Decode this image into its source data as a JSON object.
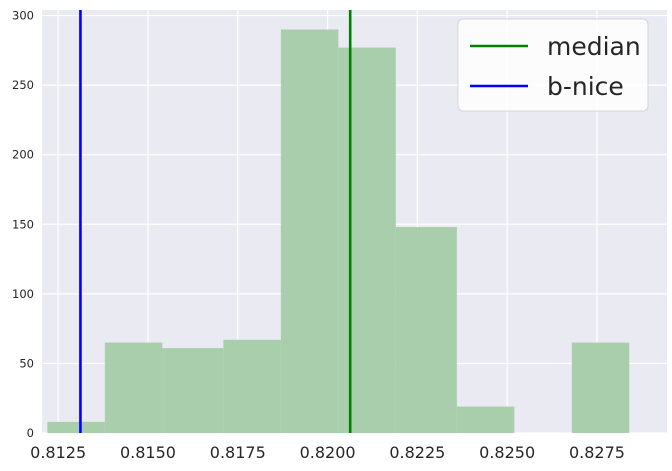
{
  "chart_data": {
    "type": "histogram",
    "title": "",
    "xlabel": "",
    "ylabel": "",
    "xlim": [
      0.81205,
      0.82945
    ],
    "ylim": [
      0,
      304
    ],
    "xticks": [
      0.8125,
      0.815,
      0.8175,
      0.82,
      0.8225,
      0.825,
      0.8275
    ],
    "xtick_labels": [
      "0.8125",
      "0.8150",
      "0.8175",
      "0.8200",
      "0.8225",
      "0.8250",
      "0.8275"
    ],
    "yticks": [
      0,
      50,
      100,
      150,
      200,
      250,
      300
    ],
    "ytick_labels": [
      "0",
      "50",
      "100",
      "150",
      "200",
      "250",
      "300"
    ],
    "grid": true,
    "bins": [
      {
        "x0": 0.8122,
        "x1": 0.8138,
        "count": 8
      },
      {
        "x0": 0.8138,
        "x1": 0.8154,
        "count": 65
      },
      {
        "x0": 0.8154,
        "x1": 0.8171,
        "count": 61
      },
      {
        "x0": 0.8171,
        "x1": 0.8187,
        "count": 67
      },
      {
        "x0": 0.8187,
        "x1": 0.8203,
        "count": 290
      },
      {
        "x0": 0.8203,
        "x1": 0.8219,
        "count": 277
      },
      {
        "x0": 0.8219,
        "x1": 0.8236,
        "count": 148
      },
      {
        "x0": 0.8236,
        "x1": 0.8252,
        "count": 19
      },
      {
        "x0": 0.8252,
        "x1": 0.8268,
        "count": 0
      },
      {
        "x0": 0.8268,
        "x1": 0.8284,
        "count": 65
      }
    ],
    "vlines": [
      {
        "name": "median",
        "x": 0.82063,
        "color": "#008000"
      },
      {
        "name": "b-nice",
        "x": 0.81312,
        "color": "#0000ff"
      }
    ],
    "legend_position": "top-right",
    "colors": {
      "bar": "#a5cca8",
      "background": "#eaeaf2",
      "grid": "#ffffff"
    }
  }
}
